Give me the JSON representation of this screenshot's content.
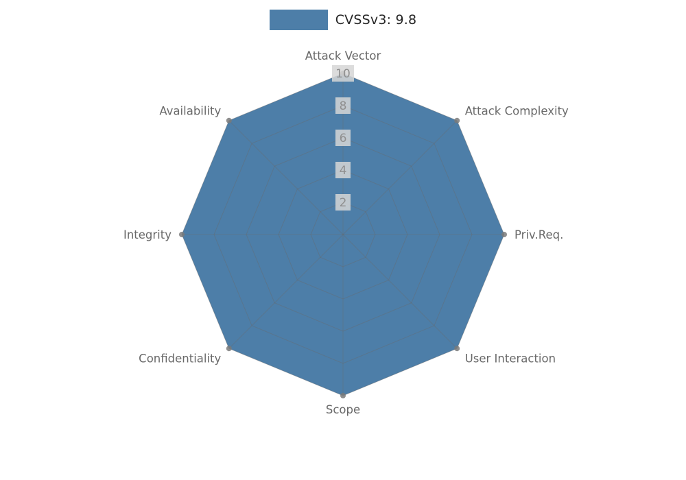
{
  "legend": {
    "label": "CVSSv3: 9.8"
  },
  "chart_data": {
    "type": "radar",
    "title": "",
    "legend_position": "top",
    "categories": [
      "Attack Vector",
      "Attack Complexity",
      "Priv.Req.",
      "User Interaction",
      "Scope",
      "Confidentiality",
      "Integrity",
      "Availability"
    ],
    "series": [
      {
        "name": "CVSSv3: 9.8",
        "values": [
          10,
          10,
          10,
          10,
          10,
          10,
          10,
          10
        ],
        "color": "#4d7ea8",
        "marker_color": "#7a7a7a"
      }
    ],
    "ticks": [
      2,
      4,
      6,
      8,
      10
    ],
    "rmax": 10,
    "grid": true,
    "grid_color": "#6a6a6a",
    "axis_label_color": "#696969",
    "tick_label_color": "#8f8f8f",
    "tick_label_bg": "#d6d6d6"
  }
}
